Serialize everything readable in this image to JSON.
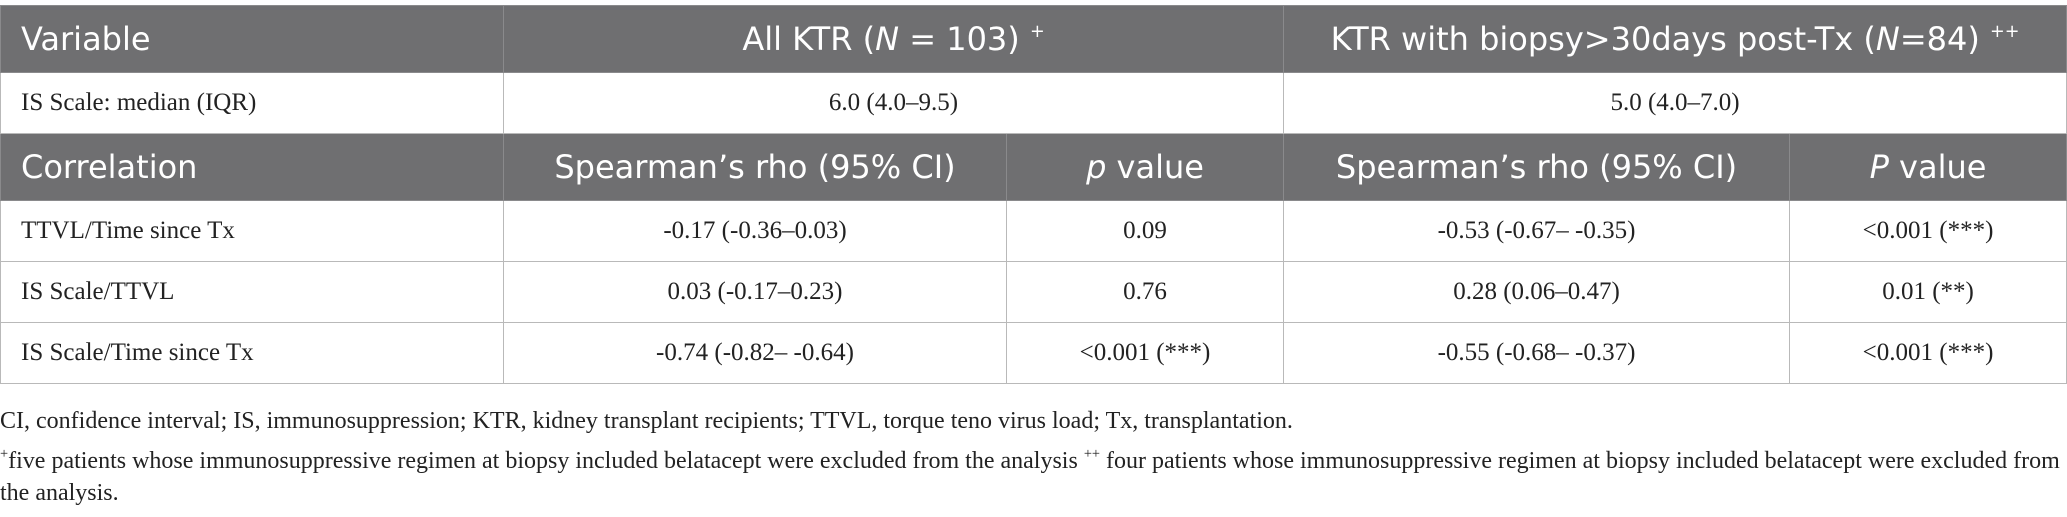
{
  "table": {
    "header1": {
      "variable": "Variable",
      "all_ktr_pre": "All KTR (",
      "all_ktr_n": "N",
      "all_ktr_post": " = 103)",
      "all_ktr_sup": "+",
      "biopsy_pre": "KTR with biopsy>30days post-Tx (",
      "biopsy_n": "N",
      "biopsy_post": "=84)",
      "biopsy_sup": "++"
    },
    "is_scale_row": {
      "label": "IS Scale: median (IQR)",
      "all_value": "6.0 (4.0–9.5)",
      "biopsy_value": "5.0 (4.0–7.0)"
    },
    "header2": {
      "correlation": "Correlation",
      "rho_all": "Spearman’s rho (95% CI)",
      "p_all_italic": "p",
      "p_all_rest": " value",
      "rho_biopsy": "Spearman’s rho (95% CI)",
      "p_biopsy_italic": "P",
      "p_biopsy_rest": " value"
    },
    "rows": [
      {
        "label": "TTVL/Time since Tx",
        "rho_all": "-0.17 (-0.36–0.03)",
        "p_all": "0.09",
        "rho_biopsy": "-0.53 (-0.67– -0.35)",
        "p_biopsy": "<0.001 (***)"
      },
      {
        "label": "IS Scale/TTVL",
        "rho_all": "0.03 (-0.17–0.23)",
        "p_all": "0.76",
        "rho_biopsy": "0.28 (0.06–0.47)",
        "p_biopsy": "0.01 (**)"
      },
      {
        "label": "IS Scale/Time since Tx",
        "rho_all": "-0.74 (-0.82– -0.64)",
        "p_all": "<0.001 (***)",
        "rho_biopsy": "-0.55 (-0.68– -0.37)",
        "p_biopsy": "<0.001 (***)"
      }
    ]
  },
  "footnotes": {
    "abbreviations": "CI, confidence interval; IS, immunosuppression; KTR, kidney transplant recipients; TTVL, torque teno virus load; Tx, transplantation.",
    "note1_sup": "+",
    "note1_text": "five patients whose immunosuppressive regimen at biopsy included belatacept were excluded from the analysis ",
    "note2_sup": "++",
    "note2_text": " four patients whose immunosuppressive regimen at biopsy included belatacept were excluded from the analysis."
  }
}
